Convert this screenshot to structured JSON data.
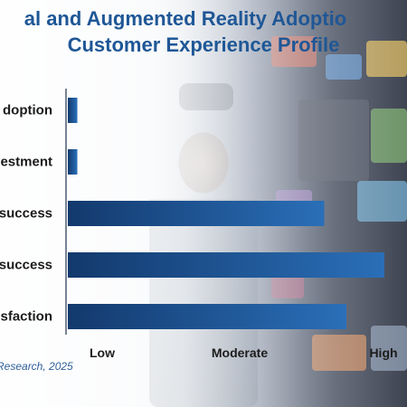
{
  "title_line1": "al and Augmented Reality Adoptio",
  "title_line2": "Customer Experience Profile",
  "source": "Research, 2025",
  "colors": {
    "title": "#1f5796",
    "bar_dark": "#13396d",
    "bar_light": "#2a6fb8",
    "axis": "#4b5b73"
  },
  "chart_data": {
    "type": "bar",
    "orientation": "horizontal",
    "categories": [
      "doption",
      "estment",
      "success",
      "success",
      "sfaction"
    ],
    "values": [
      0.03,
      0.03,
      0.81,
      1.0,
      0.88
    ],
    "xticks": [
      "Low",
      "Moderate",
      "High"
    ],
    "xlim": [
      0,
      1
    ],
    "grid": false
  }
}
